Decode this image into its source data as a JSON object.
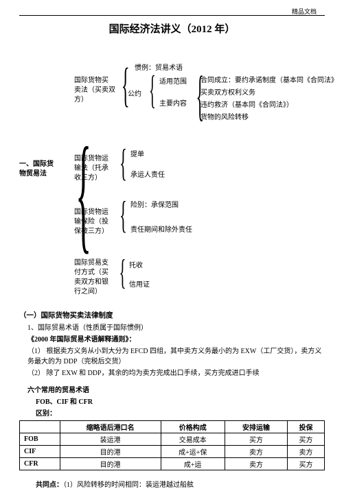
{
  "header_label": "精品文档",
  "title": "国际经济法讲义（2012 年）",
  "tree": {
    "root": "一、国际货物贸易法",
    "b1": {
      "title_l1": "国际货物买",
      "title_l2": "卖法（买卖双",
      "title_l3": "方）",
      "c1": "惯例：贸易术语",
      "c2a": "公约",
      "c2_l1": "适用范围",
      "c2_l2": "主要内容",
      "r1": "合同成立：要约承诺制度（基本同《合同法》",
      "r2": "买卖双方权利义务",
      "r3": "违约救济（基本同《合同法》）",
      "r4": "货物的风险转移"
    },
    "b2": {
      "title_l1": "国际货物运",
      "title_l2": "输法（托承",
      "title_l3": "收三方）",
      "c1": "提单",
      "c2": "承运人责任"
    },
    "b3": {
      "title_l1": "国际货物运",
      "title_l2": "输保险（投",
      "title_l3": "保被三方）",
      "c1": "险别：承保范围",
      "c2": "责任期间和除外责任"
    },
    "b4": {
      "title_l1": "国际贸易支",
      "title_l2": "付方式（买",
      "title_l3": "卖双方和银",
      "title_l4": "行之间）",
      "c1": "托收",
      "c2": "信用证"
    }
  },
  "section1": {
    "head": "（一）国际货物买卖法律制度",
    "line1": "1、国际贸易术语（性质属于国际惯例）",
    "line2": "《2000 年国际贸易术语解释通则》：",
    "line3a": "（1）",
    "line3b": "根据卖方义务从小到大分为 EFCD 四组，其中卖方义务最小的为 EXW（工厂交货），卖方义务最大的为 DDP（完税后交货）",
    "line4a": "（2）",
    "line4b": "除了 EXW 和 DDP，其余的均为卖方完成出口手续，买方完成进口手续",
    "sub_head": "六个常用的贸易术语",
    "sub_line": "FOB、CIF 和 CFR",
    "diff_label": "区别：",
    "table": {
      "cols": [
        "",
        "缩略语后港口名",
        "价格构成",
        "安排运输",
        "投保"
      ],
      "rows": [
        [
          "FOB",
          "装运港",
          "交易成本",
          "买方",
          "买方"
        ],
        [
          "CIF",
          "目的港",
          "成+运+保",
          "卖方",
          "卖方"
        ],
        [
          "CFR",
          "目的港",
          "成+运",
          "卖方",
          "买方"
        ]
      ]
    },
    "common_label": "共同点：",
    "common_text": "（1）风险转移的时间相同：装运港越过船舷"
  }
}
